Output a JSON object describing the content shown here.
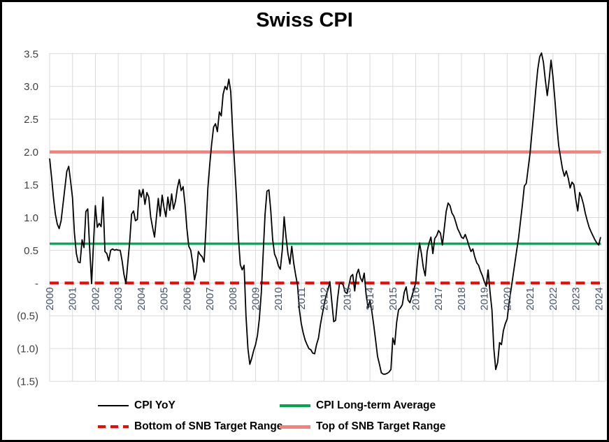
{
  "title": "Swiss CPI",
  "colors": {
    "cpi": "#000000",
    "average": "#00A550",
    "bottom_range": "#FF0000",
    "top_range": "#F8807A",
    "grid": "#D9D9D9",
    "x_label": "#44546A",
    "y_label": "#404040"
  },
  "axes": {
    "x_years": [
      "2000",
      "2001",
      "2002",
      "2003",
      "2004",
      "2005",
      "2006",
      "2007",
      "2008",
      "2009",
      "2010",
      "2011",
      "2012",
      "2013",
      "2014",
      "2015",
      "2016",
      "2017",
      "2018",
      "2019",
      "2020",
      "2021",
      "2022",
      "2023",
      "2024"
    ],
    "y_ticks": [
      {
        "value": 3.5,
        "label": "3.5"
      },
      {
        "value": 3.0,
        "label": "3.0"
      },
      {
        "value": 2.5,
        "label": "2.5"
      },
      {
        "value": 2.0,
        "label": "2.0"
      },
      {
        "value": 1.5,
        "label": "1.5"
      },
      {
        "value": 1.0,
        "label": "1.0"
      },
      {
        "value": 0.5,
        "label": "0.5"
      },
      {
        "value": 0.0,
        "label": "-"
      },
      {
        "value": -0.5,
        "label": "(0.5)"
      },
      {
        "value": -1.0,
        "label": "(1.0)"
      },
      {
        "value": -1.5,
        "label": "(1.5)"
      }
    ]
  },
  "legend": [
    {
      "id": "cpi",
      "label": "CPI YoY"
    },
    {
      "id": "avg",
      "label": "CPI Long-term Average"
    },
    {
      "id": "bottom",
      "label": "Bottom of SNB Target Range"
    },
    {
      "id": "top",
      "label": "Top of SNB Target Range"
    }
  ],
  "chart_data": {
    "type": "line",
    "title": "Swiss CPI",
    "frequency": "monthly",
    "x_start": {
      "year": 2000,
      "month": 1
    },
    "x_range": [
      2000,
      2024
    ],
    "ylim": [
      -1.5,
      3.5
    ],
    "grid": true,
    "legend_position": "bottom",
    "series": [
      {
        "name": "CPI YoY",
        "values": [
          1.9,
          1.62,
          1.3,
          1.05,
          0.9,
          0.83,
          0.95,
          1.2,
          1.45,
          1.7,
          1.78,
          1.55,
          1.3,
          0.77,
          0.45,
          0.32,
          0.31,
          0.66,
          0.54,
          1.09,
          1.13,
          0.52,
          -0.01,
          0.6,
          1.18,
          0.85,
          0.91,
          0.86,
          1.31,
          0.48,
          0.45,
          0.34,
          0.5,
          0.52,
          0.5,
          0.51,
          0.5,
          0.5,
          0.34,
          0.13,
          -0.01,
          0.31,
          0.63,
          1.05,
          1.1,
          0.95,
          0.97,
          1.42,
          1.31,
          1.43,
          1.2,
          1.38,
          1.31,
          1.01,
          0.85,
          0.7,
          1.0,
          1.29,
          1.02,
          1.34,
          1.15,
          1.01,
          1.31,
          1.11,
          1.36,
          1.13,
          1.25,
          1.45,
          1.58,
          1.41,
          1.47,
          1.2,
          0.83,
          0.56,
          0.5,
          0.31,
          0.05,
          0.18,
          0.48,
          0.43,
          0.4,
          0.32,
          0.84,
          1.45,
          1.81,
          2.13,
          2.38,
          2.43,
          2.31,
          2.61,
          2.55,
          2.88,
          3.0,
          2.95,
          3.11,
          2.92,
          2.3,
          1.81,
          1.3,
          0.7,
          0.28,
          0.2,
          0.27,
          -0.5,
          -1.0,
          -1.24,
          -1.15,
          -1.03,
          -0.94,
          -0.8,
          -0.55,
          -0.15,
          0.45,
          1.05,
          1.4,
          1.42,
          1.1,
          0.66,
          0.44,
          0.37,
          0.26,
          0.21,
          0.5,
          1.01,
          0.7,
          0.45,
          0.29,
          0.56,
          0.31,
          0.13,
          -0.03,
          -0.41,
          -0.62,
          -0.76,
          -0.87,
          -0.94,
          -1.0,
          -1.02,
          -1.07,
          -1.08,
          -0.94,
          -0.84,
          -0.64,
          -0.48,
          -0.33,
          -0.19,
          -0.1,
          0.02,
          -0.28,
          -0.59,
          -0.57,
          -0.25,
          -0.01,
          0.0,
          -0.03,
          -0.14,
          -0.16,
          -0.03,
          0.1,
          0.13,
          -0.12,
          0.13,
          0.21,
          0.08,
          0.02,
          0.15,
          -0.17,
          -0.38,
          -0.27,
          -0.43,
          -0.64,
          -0.88,
          -1.12,
          -1.24,
          -1.37,
          -1.39,
          -1.39,
          -1.38,
          -1.36,
          -1.32,
          -0.84,
          -0.94,
          -0.6,
          -0.41,
          -0.38,
          -0.33,
          -0.14,
          -0.06,
          -0.26,
          -0.3,
          -0.2,
          -0.1,
          0.0,
          0.34,
          0.61,
          0.45,
          0.24,
          0.11,
          0.48,
          0.61,
          0.7,
          0.45,
          0.68,
          0.72,
          0.8,
          0.76,
          0.58,
          0.83,
          1.09,
          1.22,
          1.18,
          1.07,
          1.02,
          0.93,
          0.83,
          0.77,
          0.7,
          0.68,
          0.74,
          0.66,
          0.56,
          0.48,
          0.52,
          0.4,
          0.31,
          0.27,
          0.18,
          0.11,
          0.02,
          -0.05,
          0.2,
          -0.14,
          -0.41,
          -1.0,
          -1.32,
          -1.21,
          -0.91,
          -0.94,
          -0.73,
          -0.62,
          -0.55,
          -0.3,
          -0.1,
          0.1,
          0.3,
          0.5,
          0.7,
          0.95,
          1.2,
          1.48,
          1.52,
          1.75,
          1.98,
          2.3,
          2.62,
          2.95,
          3.25,
          3.45,
          3.51,
          3.37,
          3.1,
          2.86,
          3.1,
          3.4,
          3.15,
          2.8,
          2.42,
          2.1,
          1.92,
          1.74,
          1.63,
          1.71,
          1.6,
          1.45,
          1.54,
          1.5,
          1.27,
          1.1,
          1.38,
          1.31,
          1.2,
          1.06,
          0.95,
          0.85,
          0.78,
          0.72,
          0.66,
          0.61,
          0.58,
          0.7
        ]
      },
      {
        "name": "CPI Long-term Average",
        "type": "reference",
        "value": 0.6
      },
      {
        "name": "Bottom of SNB Target Range",
        "type": "reference",
        "value": 0.0
      },
      {
        "name": "Top of SNB Target Range",
        "type": "reference",
        "value": 2.0
      }
    ]
  }
}
